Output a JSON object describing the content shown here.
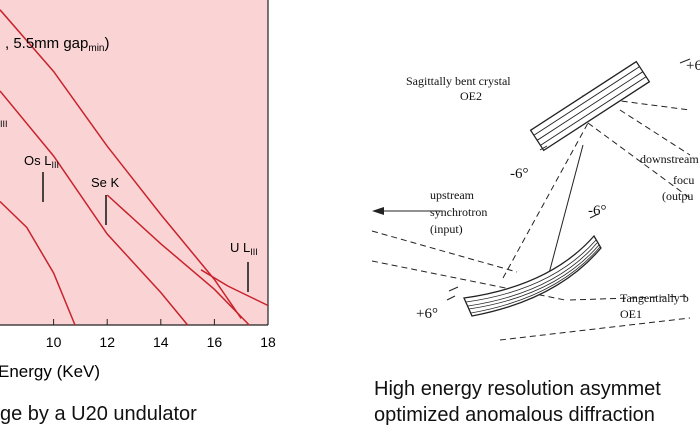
{
  "left_figure": {
    "title_fragment": ", 5.5mm gap",
    "title_subscript": "min",
    "title_close": ")",
    "xlabel": "Energy  (KeV)",
    "x_ticks": [
      "10",
      "12",
      "14",
      "16",
      "18"
    ],
    "labels": {
      "partial_top": "III",
      "os": "Os L",
      "os_sub": "III",
      "se": "Se K",
      "u": "U L",
      "u_sub": "III"
    },
    "caption": "ge by a U20 undulator",
    "colors": {
      "background": "#fad4d4",
      "curve": "#c8232c"
    }
  },
  "chart_data": {
    "type": "line",
    "title": "",
    "xlabel": "Energy  (KeV)",
    "ylabel": "",
    "xlim": [
      8,
      18
    ],
    "x_ticks": [
      10,
      12,
      14,
      16,
      18
    ],
    "series": [
      {
        "x": [
          8.0,
          9.0,
          10.0,
          10.8
        ],
        "y": [
          0.38,
          0.3,
          0.16,
          0.0
        ]
      },
      {
        "x": [
          8.0,
          10.0,
          12.0,
          14.0,
          15.0
        ],
        "y": [
          0.72,
          0.52,
          0.28,
          0.1,
          0.0
        ]
      },
      {
        "x": [
          8.0,
          10.0,
          12.0,
          14.0,
          16.0,
          17.0
        ],
        "y": [
          0.97,
          0.78,
          0.55,
          0.34,
          0.14,
          0.02
        ]
      },
      {
        "x": [
          12.0,
          14.0,
          16.0,
          17.3
        ],
        "y": [
          0.4,
          0.25,
          0.11,
          0.0
        ]
      },
      {
        "x": [
          15.5,
          16.5,
          17.5,
          18.0
        ],
        "y": [
          0.17,
          0.12,
          0.08,
          0.06
        ]
      }
    ]
  },
  "right_figure": {
    "labels": {
      "sagittal_line1": "Sagittally bent crystal",
      "sagittal_line2": "OE2",
      "top_angle_pos": "+6",
      "mid_angle_neg": "-6°",
      "downstream_line1": "downstream",
      "downstream_line2": "focu",
      "downstream_line3": "(outpu",
      "upstream_line1": "upstream",
      "upstream_line2": "synchrotron",
      "upstream_line3": "(input)",
      "lower_angle_neg": "-6°",
      "tangential_line1": "Tangentially b",
      "tangential_line2": "OE1",
      "lower_angle_pos": "+6°"
    },
    "caption_line1": "High energy resolution asymmet",
    "caption_line2": "optimized anomalous diffraction"
  }
}
